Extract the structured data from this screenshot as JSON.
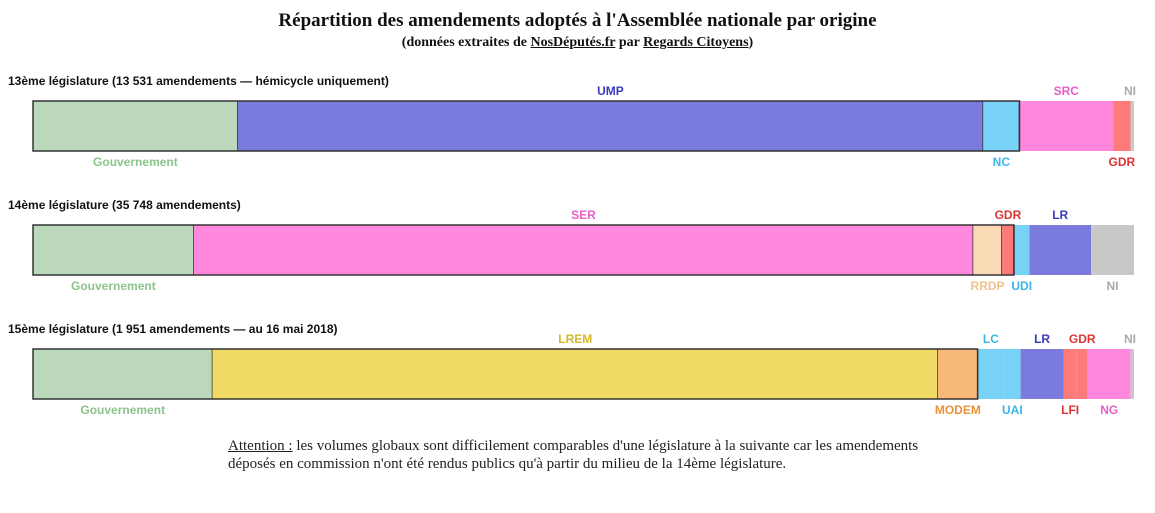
{
  "header": {
    "title": "Répartition des amendements adoptés à l'Assemblée nationale par origine",
    "subtitle_prefix": "(données extraites de ",
    "subtitle_link1": "NosDéputés.fr",
    "subtitle_mid": " par ",
    "subtitle_link2": "Regards Citoyens",
    "subtitle_suffix": ")"
  },
  "note": {
    "label": "Attention :",
    "text": " les volumes globaux sont difficilement comparables d'une législature à la suivante car les amendements déposés en commission n'ont été rendus publics qu'à partir du milieu de la 14ème législature."
  },
  "chart_data": {
    "type": "bar",
    "stacked": "100%",
    "orientation": "horizontal",
    "colors": {
      "Gouvernement": "#bcd8bc",
      "UMP": "#7b7bdd",
      "NC": "#78d2f8",
      "SRC": "#ff88dd",
      "GDR": "#ff7b7b",
      "NI": "#c8c8c8",
      "SER": "#ff88dd",
      "RRDP": "#fadbb6",
      "UDI": "#78d2f8",
      "LR": "#7b7bdd",
      "LREM": "#f0d965",
      "MODEM": "#f8b878",
      "LC": "#78d2f8",
      "UAI": "#78d2f8",
      "LFI": "#ff7b7b",
      "NG": "#ff88dd"
    },
    "label_colors": {
      "Gouvernement": "#8cc48c",
      "UMP": "#3a3abf",
      "NC": "#3ab5ea",
      "SRC": "#e85fc7",
      "GDR": "#dd3333",
      "NI": "#aaaaaa",
      "SER": "#e85fc7",
      "RRDP": "#f0c390",
      "UDI": "#3ab5ea",
      "LR": "#3a3abf",
      "LREM": "#d4b82a",
      "MODEM": "#e8933a",
      "LC": "#3ab5ea",
      "UAI": "#3ab5ea",
      "LFI": "#dd3333",
      "NG": "#e85fc7"
    },
    "bars": [
      {
        "label": "13ème législature (13 531 amendements — hémicycle uniquement)",
        "segments": [
          {
            "name": "Gouvernement",
            "value": 18.6,
            "pos": "below",
            "border": true
          },
          {
            "name": "UMP",
            "value": 67.7,
            "pos": "above",
            "border": true
          },
          {
            "name": "NC",
            "value": 3.3,
            "pos": "below",
            "border": true
          },
          {
            "name": "SRC",
            "value": 8.5,
            "pos": "above",
            "border": false
          },
          {
            "name": "GDR",
            "value": 1.6,
            "pos": "below",
            "border": false
          },
          {
            "name": "NI",
            "value": 0.3,
            "pos": "above",
            "border": false
          }
        ]
      },
      {
        "label": "14ème législature (35 748 amendements)",
        "segments": [
          {
            "name": "Gouvernement",
            "value": 14.6,
            "pos": "below",
            "border": true
          },
          {
            "name": "SER",
            "value": 70.8,
            "pos": "above",
            "border": true
          },
          {
            "name": "RRDP",
            "value": 2.6,
            "pos": "below",
            "border": true
          },
          {
            "name": "GDR",
            "value": 1.1,
            "pos": "above",
            "border": true
          },
          {
            "name": "UDI",
            "value": 1.4,
            "pos": "below",
            "border": false
          },
          {
            "name": "LR",
            "value": 5.6,
            "pos": "above",
            "border": false
          },
          {
            "name": "NI",
            "value": 3.9,
            "pos": "below",
            "border": false
          }
        ]
      },
      {
        "label": "15ème législature (1 951 amendements — au 16 mai 2018)",
        "segments": [
          {
            "name": "Gouvernement",
            "value": 16.3,
            "pos": "below",
            "border": true
          },
          {
            "name": "LREM",
            "value": 65.9,
            "pos": "above",
            "border": true
          },
          {
            "name": "MODEM",
            "value": 3.6,
            "pos": "below",
            "border": true
          },
          {
            "name": "LC",
            "value": 2.4,
            "pos": "above",
            "border": false
          },
          {
            "name": "UAI",
            "value": 1.5,
            "pos": "below",
            "border": false
          },
          {
            "name": "LR",
            "value": 3.9,
            "pos": "above",
            "border": false
          },
          {
            "name": "LFI",
            "value": 1.2,
            "pos": "below",
            "border": false
          },
          {
            "name": "GDR",
            "value": 1.0,
            "pos": "above",
            "border": false
          },
          {
            "name": "NG",
            "value": 3.9,
            "pos": "below",
            "border": false
          },
          {
            "name": "NI",
            "value": 0.3,
            "pos": "above",
            "border": false
          }
        ]
      }
    ]
  }
}
